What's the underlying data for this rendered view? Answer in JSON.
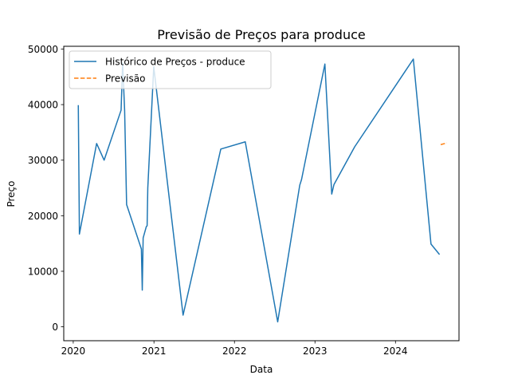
{
  "chart_data": {
    "type": "line",
    "title": "Previsão de Preços para produce",
    "xlabel": "Data",
    "ylabel": "Preço",
    "xlim": [
      "2019-11-19",
      "2024-10-15"
    ],
    "ylim": [
      -2500,
      50500
    ],
    "x_ticks": [
      "2020-01-01",
      "2021-01-01",
      "2022-01-01",
      "2023-01-01",
      "2024-01-01"
    ],
    "x_tick_labels": [
      "2020",
      "2021",
      "2022",
      "2023",
      "2024"
    ],
    "y_ticks": [
      0,
      10000,
      20000,
      30000,
      40000,
      50000
    ],
    "y_tick_labels": [
      "0",
      "10000",
      "20000",
      "30000",
      "40000",
      "50000"
    ],
    "grid": false,
    "legend_position": "top-left",
    "series": [
      {
        "name": "Histórico de Preços - produce",
        "color": "#1f77b4",
        "style": "solid",
        "points": [
          {
            "x": "2020-01-24",
            "y": 39800
          },
          {
            "x": "2020-01-29",
            "y": 16700
          },
          {
            "x": "2020-04-16",
            "y": 33000
          },
          {
            "x": "2020-05-20",
            "y": 30000
          },
          {
            "x": "2020-08-05",
            "y": 39000
          },
          {
            "x": "2020-08-12",
            "y": 47500
          },
          {
            "x": "2020-08-21",
            "y": 39000
          },
          {
            "x": "2020-08-30",
            "y": 22000
          },
          {
            "x": "2020-11-05",
            "y": 14000
          },
          {
            "x": "2020-11-09",
            "y": 6600
          },
          {
            "x": "2020-11-13",
            "y": 16000
          },
          {
            "x": "2020-11-27",
            "y": 18000
          },
          {
            "x": "2020-12-01",
            "y": 18200
          },
          {
            "x": "2020-12-04",
            "y": 25000
          },
          {
            "x": "2020-12-31",
            "y": 46800
          },
          {
            "x": "2021-05-13",
            "y": 2100
          },
          {
            "x": "2021-10-31",
            "y": 32000
          },
          {
            "x": "2022-02-19",
            "y": 33300
          },
          {
            "x": "2022-07-16",
            "y": 900
          },
          {
            "x": "2022-10-24",
            "y": 25500
          },
          {
            "x": "2022-11-01",
            "y": 26500
          },
          {
            "x": "2023-02-15",
            "y": 47300
          },
          {
            "x": "2023-03-18",
            "y": 23900
          },
          {
            "x": "2023-03-28",
            "y": 25600
          },
          {
            "x": "2023-06-30",
            "y": 32400
          },
          {
            "x": "2024-03-22",
            "y": 48200
          },
          {
            "x": "2024-06-10",
            "y": 14900
          },
          {
            "x": "2024-07-17",
            "y": 13100
          }
        ]
      },
      {
        "name": "Previsão",
        "color": "#ff7f0e",
        "style": "dashed",
        "points": [
          {
            "x": "2024-07-24",
            "y": 32800
          },
          {
            "x": "2024-08-21",
            "y": 33100
          }
        ]
      }
    ]
  }
}
